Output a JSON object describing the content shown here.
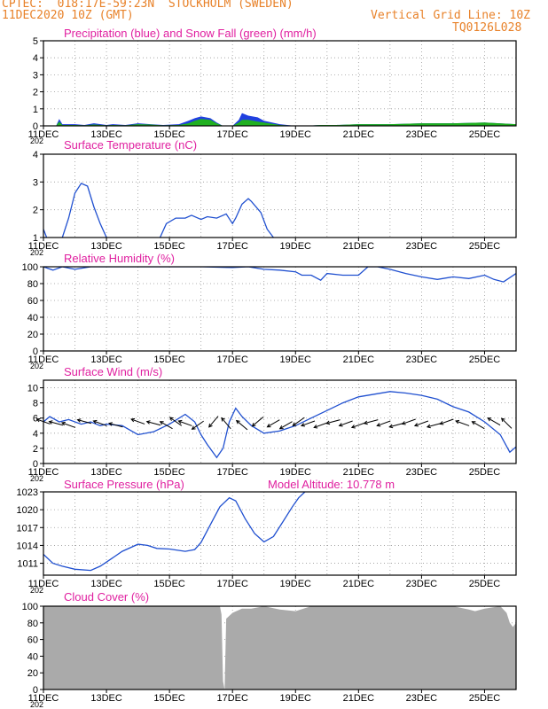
{
  "header": {
    "line1": "CPTEC:  018:17E-59:23N  STOCKHOLM (SWEDEN)",
    "line2": "11DEC2020 10Z (GMT)",
    "grid_note": "Vertical Grid Line: 10Z",
    "code": "TQ0126L028"
  },
  "colors": {
    "header": "#e8822a",
    "title": "#e020a0",
    "line": "#2050d0",
    "precip": "#2040e0",
    "snow": "#20b020",
    "cloud": "#aaaaaa",
    "axis": "#000000"
  },
  "x_axis": {
    "ticks": [
      "11DEC",
      "13DEC",
      "15DEC",
      "17DEC",
      "19DEC",
      "21DEC",
      "23DEC",
      "25DEC"
    ],
    "year_stub": "202",
    "tick_days": [
      11,
      13,
      15,
      17,
      19,
      21,
      23,
      25
    ],
    "range": [
      11.0,
      26.0
    ]
  },
  "chart_data": [
    {
      "type": "area",
      "title": "Precipitation (blue) and Snow Fall (green) (mm/h)",
      "ylim": [
        0,
        5
      ],
      "yticks": [
        "0",
        "1",
        "2",
        "3",
        "4",
        "5"
      ],
      "series": [
        {
          "name": "Precipitation",
          "x": [
            11.0,
            11.4,
            11.5,
            11.6,
            12.0,
            12.3,
            12.6,
            13.0,
            13.2,
            13.6,
            14.0,
            14.4,
            14.8,
            15.3,
            15.6,
            15.8,
            16.0,
            16.3,
            16.5,
            16.7,
            17.0,
            17.2,
            17.3,
            17.5,
            17.8,
            18.0,
            18.5,
            19.0,
            19.3,
            19.8,
            20.3,
            21.0,
            22.0,
            23.0,
            24.0,
            25.0,
            26.0
          ],
          "y": [
            0.0,
            0.0,
            0.4,
            0.1,
            0.1,
            0.05,
            0.15,
            0.05,
            0.1,
            0.05,
            0.15,
            0.1,
            0.05,
            0.1,
            0.3,
            0.45,
            0.55,
            0.45,
            0.2,
            0.0,
            0.0,
            0.35,
            0.75,
            0.6,
            0.5,
            0.3,
            0.1,
            0.0,
            0.0,
            0.05,
            0.05,
            0.1,
            0.1,
            0.15,
            0.15,
            0.2,
            0.1
          ]
        },
        {
          "name": "Snow Fall",
          "x": [
            11.0,
            11.4,
            11.5,
            11.6,
            12.0,
            12.3,
            12.6,
            13.0,
            13.2,
            13.6,
            14.0,
            14.4,
            14.8,
            15.3,
            15.6,
            15.8,
            16.0,
            16.3,
            16.5,
            16.7,
            17.0,
            17.2,
            17.3,
            17.5,
            17.8,
            18.0,
            18.5,
            19.0,
            19.3,
            19.8,
            20.3,
            21.0,
            22.0,
            23.0,
            24.0,
            25.0,
            26.0
          ],
          "y": [
            0.0,
            0.0,
            0.25,
            0.05,
            0.05,
            0.03,
            0.08,
            0.03,
            0.05,
            0.03,
            0.1,
            0.08,
            0.03,
            0.05,
            0.15,
            0.3,
            0.4,
            0.35,
            0.15,
            0.0,
            0.0,
            0.2,
            0.35,
            0.35,
            0.25,
            0.2,
            0.05,
            0.0,
            0.0,
            0.05,
            0.05,
            0.1,
            0.1,
            0.15,
            0.15,
            0.2,
            0.1
          ]
        }
      ]
    },
    {
      "type": "line",
      "title": "Surface Temperature (nC)",
      "ylim": [
        1,
        4
      ],
      "yticks": [
        "1",
        "2",
        "3",
        "4"
      ],
      "segments": [
        {
          "x": [
            11.0,
            11.1
          ],
          "y": [
            1.3,
            1.0
          ]
        },
        {
          "x": [
            11.6,
            11.8,
            12.0,
            12.2,
            12.4,
            12.6,
            12.8,
            13.0
          ],
          "y": [
            1.0,
            1.7,
            2.6,
            2.95,
            2.85,
            2.1,
            1.5,
            1.0
          ]
        },
        {
          "x": [
            14.7,
            14.9,
            15.2,
            15.5,
            15.7,
            16.0,
            16.2,
            16.5,
            16.8,
            17.0,
            17.1,
            17.3,
            17.5,
            17.6,
            17.9,
            18.1,
            18.3
          ],
          "y": [
            1.0,
            1.5,
            1.7,
            1.7,
            1.8,
            1.65,
            1.75,
            1.7,
            1.85,
            1.5,
            1.7,
            2.2,
            2.4,
            2.3,
            1.9,
            1.3,
            1.0
          ]
        }
      ]
    },
    {
      "type": "line",
      "title": "Relative Humidity (%)",
      "ylim": [
        0,
        100
      ],
      "yticks": [
        "0",
        "20",
        "40",
        "60",
        "80",
        "100"
      ],
      "series": [
        {
          "name": "Relative Humidity",
          "x": [
            11.0,
            11.3,
            11.6,
            12.0,
            12.5,
            13.0,
            14.0,
            15.0,
            16.0,
            17.0,
            17.5,
            18.0,
            18.5,
            19.0,
            19.2,
            19.5,
            19.8,
            20.0,
            20.5,
            21.0,
            21.3,
            21.6,
            22.0,
            22.5,
            23.0,
            23.5,
            24.0,
            24.5,
            25.0,
            25.3,
            25.6,
            26.0
          ],
          "y": [
            100,
            96,
            100,
            97,
            100,
            100,
            100,
            100,
            100,
            99,
            100,
            97,
            96,
            94,
            90,
            90,
            84,
            92,
            90,
            90,
            100,
            100,
            97,
            92,
            88,
            85,
            88,
            86,
            90,
            85,
            82,
            92
          ]
        }
      ]
    },
    {
      "type": "line",
      "title": "Surface Wind (m/s)",
      "ylim": [
        0,
        11
      ],
      "yticks": [
        "0",
        "2",
        "4",
        "6",
        "8",
        "10"
      ],
      "series": [
        {
          "name": "Surface Wind",
          "x": [
            11.0,
            11.2,
            11.5,
            11.8,
            12.2,
            12.5,
            12.8,
            13.0,
            13.5,
            14.0,
            14.5,
            15.0,
            15.5,
            15.8,
            16.0,
            16.2,
            16.5,
            16.7,
            16.9,
            17.1,
            17.3,
            17.6,
            18.0,
            18.5,
            19.0,
            19.5,
            20.0,
            20.5,
            21.0,
            22.0,
            22.5,
            23.0,
            23.5,
            24.0,
            24.5,
            25.0,
            25.5,
            25.8,
            26.0
          ],
          "y": [
            5.5,
            6.2,
            5.5,
            5.8,
            5.2,
            5.5,
            5.0,
            5.2,
            5.0,
            3.8,
            4.2,
            5.2,
            6.5,
            5.5,
            3.8,
            2.5,
            0.8,
            2.0,
            5.5,
            7.3,
            6.2,
            5.0,
            4.0,
            4.3,
            5.0,
            6.0,
            7.0,
            8.0,
            8.8,
            9.5,
            9.3,
            9.0,
            8.5,
            7.5,
            6.8,
            5.5,
            3.8,
            1.5,
            2.2
          ]
        }
      ],
      "arrow_days": [
        11.0,
        11.4,
        11.8,
        12.3,
        12.8,
        13.3,
        14.0,
        14.5,
        14.9,
        15.2,
        15.5,
        15.9,
        16.4,
        16.8,
        17.3,
        17.8,
        18.3,
        18.7,
        19.1,
        19.4,
        19.8,
        20.2,
        20.6,
        21.0,
        21.4,
        21.8,
        22.2,
        22.6,
        23.0,
        23.4,
        23.8,
        24.3,
        24.8,
        25.3,
        25.7
      ],
      "arrow_dirs_deg": [
        160,
        165,
        160,
        165,
        160,
        165,
        160,
        165,
        150,
        145,
        160,
        215,
        230,
        130,
        140,
        220,
        210,
        210,
        215,
        200,
        200,
        195,
        200,
        200,
        195,
        200,
        195,
        200,
        200,
        195,
        200,
        160,
        150,
        150,
        135
      ]
    },
    {
      "type": "line",
      "title": "Surface Pressure (hPa)",
      "altitude_label": "Model Altitude: 10.778  m",
      "ylim": [
        1009,
        1023
      ],
      "yticks": [
        "1011",
        "1014",
        "1017",
        "1020",
        "1023"
      ],
      "series": [
        {
          "name": "Surface Pressure",
          "x": [
            11.0,
            11.3,
            11.6,
            12.0,
            12.5,
            12.8,
            13.0,
            13.5,
            14.0,
            14.3,
            14.6,
            15.0,
            15.5,
            15.8,
            16.0,
            16.3,
            16.6,
            16.9,
            17.1,
            17.4,
            17.7,
            18.0,
            18.3,
            18.6,
            18.9,
            19.1,
            19.3
          ],
          "y": [
            1012.5,
            1011.0,
            1010.5,
            1010.0,
            1009.8,
            1010.5,
            1011.2,
            1013.0,
            1014.2,
            1014.0,
            1013.5,
            1013.4,
            1013.0,
            1013.3,
            1014.5,
            1017.5,
            1020.5,
            1022.0,
            1021.5,
            1018.5,
            1016.0,
            1014.6,
            1015.5,
            1018.0,
            1020.5,
            1022.0,
            1023.0
          ]
        }
      ]
    },
    {
      "type": "area",
      "title": "Cloud Cover (%)",
      "ylim": [
        0,
        100
      ],
      "yticks": [
        "0",
        "20",
        "40",
        "60",
        "80",
        "100"
      ],
      "series": [
        {
          "name": "Cloud Cover",
          "x": [
            11.0,
            13.0,
            15.0,
            16.6,
            16.65,
            16.7,
            16.75,
            16.8,
            17.0,
            17.3,
            17.6,
            18.0,
            18.5,
            19.0,
            19.5,
            20.0,
            21.0,
            22.0,
            23.0,
            24.0,
            24.5,
            24.7,
            25.0,
            25.5,
            25.7,
            25.8,
            25.9,
            26.0
          ],
          "y": [
            100,
            100,
            100,
            100,
            90,
            10,
            0,
            85,
            92,
            97,
            97,
            100,
            96,
            94,
            100,
            100,
            100,
            100,
            100,
            100,
            96,
            94,
            97,
            100,
            92,
            80,
            75,
            80
          ]
        }
      ]
    }
  ]
}
